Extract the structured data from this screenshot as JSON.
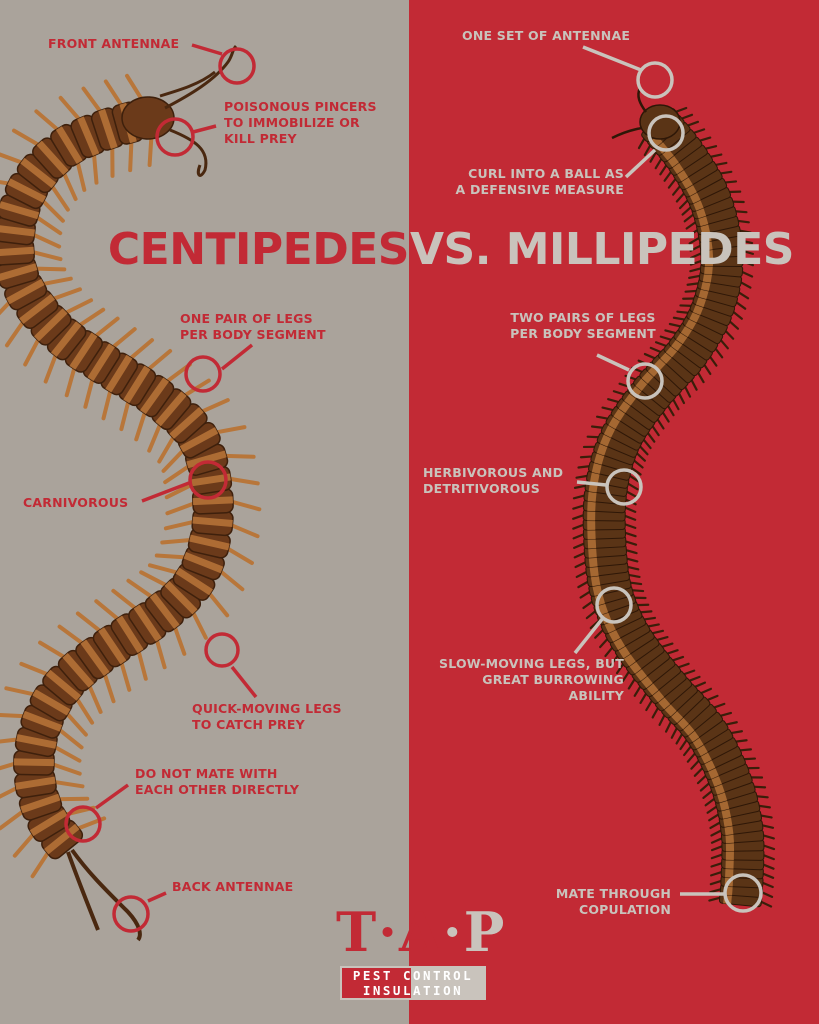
{
  "title": {
    "left": "CENTIPEDES",
    "right": "VS. MILLIPEDES"
  },
  "colors": {
    "left_background": "#aaa39b",
    "right_background": "#c22a35",
    "left_text": "#c22a35",
    "right_text": "#c9c3bc",
    "body_brown": "#6b3a1a",
    "segment_orange": "#b8763a"
  },
  "centipede_labels": {
    "front_antennae": "FRONT ANTENNAE",
    "pincers": "POISONOUS PINCERS\nTO IMMOBILIZE OR\nKILL PREY",
    "one_pair_legs": "ONE PAIR OF LEGS\nPER BODY SEGMENT",
    "carnivorous": "CARNIVOROUS",
    "quick_legs": "QUICK-MOVING LEGS\nTO CATCH PREY",
    "mating": "DO NOT MATE WITH\nEACH OTHER DIRECTLY",
    "back_antennae": "BACK ANTENNAE"
  },
  "millipede_labels": {
    "antennae": "ONE SET OF ANTENNAE",
    "curl": "CURL INTO A BALL AS\nA DEFENSIVE MEASURE",
    "two_pairs_legs": "TWO PAIRS OF LEGS\nPER BODY SEGMENT",
    "diet": "HERBIVOROUS AND\nDETRITIVOROUS",
    "slow_legs": "SLOW-MOVING LEGS, BUT\nGREAT BURROWING\nABILITY",
    "mating": "MATE THROUGH\nCOPULATION"
  },
  "logo": {
    "mark_left": "T·A",
    "mark_right": "·P",
    "line1": "PEST CONTROL",
    "line2": "INSULATION",
    "icon": "tap-logo-icon"
  }
}
